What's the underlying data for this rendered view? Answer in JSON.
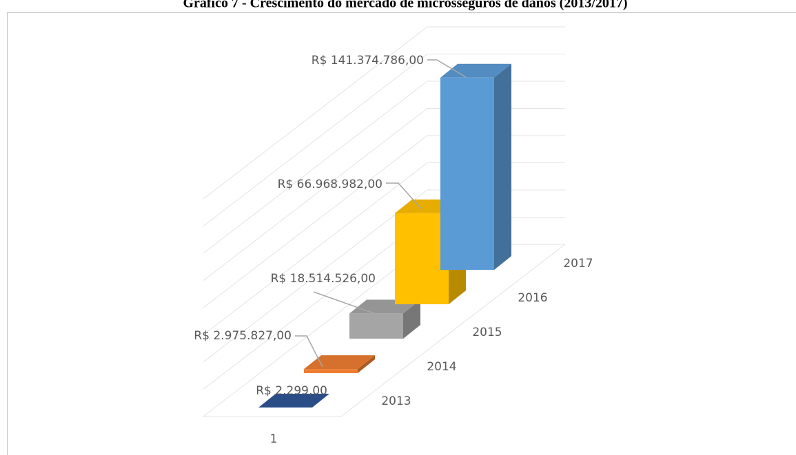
{
  "chart_data": {
    "type": "bar3d",
    "title": "Gráfico 7 - Crescimento do mercado de microsseguros de danos (2013/2017)",
    "categories": [
      "1"
    ],
    "series": [
      {
        "name": "2013",
        "color": "#2f5597",
        "values": [
          2299
        ],
        "value_labels": [
          "R$ 2.299,00"
        ]
      },
      {
        "name": "2014",
        "color": "#ed7d31",
        "values": [
          2975827
        ],
        "value_labels": [
          "R$ 2.975.827,00"
        ]
      },
      {
        "name": "2015",
        "color": "#a5a5a5",
        "values": [
          18514526
        ],
        "value_labels": [
          "R$ 18.514.526,00"
        ]
      },
      {
        "name": "2016",
        "color": "#ffc000",
        "values": [
          66968982
        ],
        "value_labels": [
          "R$ 66.968.982,00"
        ]
      },
      {
        "name": "2017",
        "color": "#5b9bd5",
        "values": [
          141374786
        ],
        "value_labels": [
          "R$ 141.374.786,00"
        ]
      }
    ],
    "ylim": [
      0,
      160000000
    ],
    "yticks": [
      0,
      20000000,
      40000000,
      60000000,
      80000000,
      100000000,
      120000000,
      140000000,
      160000000
    ],
    "grid": true
  }
}
